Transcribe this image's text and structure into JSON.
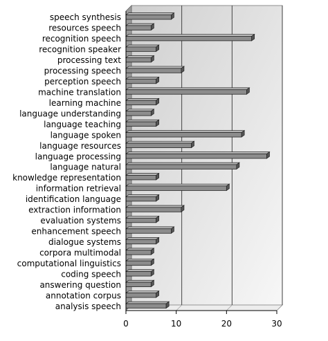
{
  "chart_data": {
    "type": "bar",
    "orientation": "horizontal",
    "categories": [
      "speech synthesis",
      "resources speech",
      "recognition speech",
      "recognition speaker",
      "processing text",
      "processing speech",
      "perception speech",
      "machine translation",
      "learning machine",
      "language understanding",
      "language teaching",
      "language spoken",
      "language resources",
      "language processing",
      "language natural",
      "knowledge representation",
      "information retrieval",
      "identification language",
      "extraction information",
      "evaluation systems",
      "enhancement speech",
      "dialogue systems",
      "corpora multimodal",
      "computational linguistics",
      "coding speech",
      "answering question",
      "annotation corpus",
      "analysis speech"
    ],
    "values": [
      9,
      5,
      25,
      6,
      5,
      11,
      6,
      24,
      6,
      5,
      6,
      23,
      13,
      28,
      22,
      6,
      20,
      6,
      11,
      6,
      9,
      6,
      5,
      5,
      5,
      5,
      6,
      8
    ],
    "xlim": [
      0,
      30
    ],
    "xticks": [
      "0",
      "10",
      "20",
      "30"
    ],
    "grid": "vertical",
    "style": "3d",
    "colors": {
      "bar": "#8c8c8c",
      "bar_top": "#bdbdbd",
      "plot_bg": "#dcdcdc",
      "plot_bg_light": "#f4f4f4",
      "grid": "#333333"
    }
  }
}
